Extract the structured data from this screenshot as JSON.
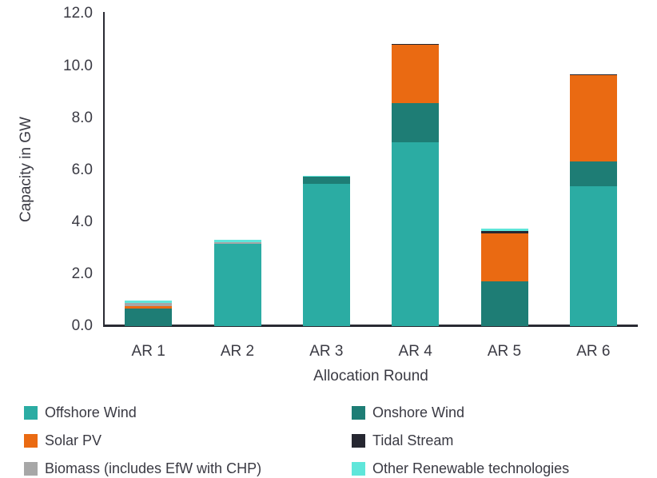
{
  "chart_data": {
    "type": "bar",
    "stacked": true,
    "title": "",
    "xlabel": "Allocation Round",
    "ylabel": "Capacity in GW",
    "categories": [
      "AR 1",
      "AR 2",
      "AR 3",
      "AR 4",
      "AR 5",
      "AR 6"
    ],
    "series": [
      {
        "name": "Offshore Wind",
        "color": "#2BACA3",
        "values": [
          0,
          3.16,
          5.47,
          7.08,
          0,
          5.38
        ]
      },
      {
        "name": "Onshore Wind",
        "color": "#1E7D75",
        "values": [
          0.68,
          0,
          0.27,
          1.48,
          1.71,
          0.95
        ]
      },
      {
        "name": "Solar PV",
        "color": "#EA6A12",
        "values": [
          0.09,
          0,
          0,
          2.26,
          1.85,
          3.31
        ]
      },
      {
        "name": "Tidal Stream",
        "color": "#262731",
        "values": [
          0,
          0,
          0,
          0.04,
          0.09,
          0.05
        ]
      },
      {
        "name": "Biomass (includes EfW with CHP)",
        "color": "#A7A7A7",
        "values": [
          0.11,
          0.08,
          0,
          0,
          0,
          0
        ]
      },
      {
        "name": "Other Renewable technologies",
        "color": "#5FE6DA",
        "values": [
          0.09,
          0.08,
          0.04,
          0,
          0.09,
          0
        ]
      }
    ],
    "totals": [
      0.97,
      3.32,
      5.78,
      10.86,
      3.74,
      9.69
    ],
    "ylim": [
      0,
      12
    ],
    "ytick_step": 2,
    "ytick_labels": [
      "0.0",
      "2.0",
      "4.0",
      "6.0",
      "8.0",
      "10.0",
      "12.0"
    ],
    "grid": false,
    "legend_position": "bottom",
    "colors": {
      "text": "#3A3A43",
      "axis": "#2A2B33",
      "background": "#FFFFFF"
    }
  }
}
